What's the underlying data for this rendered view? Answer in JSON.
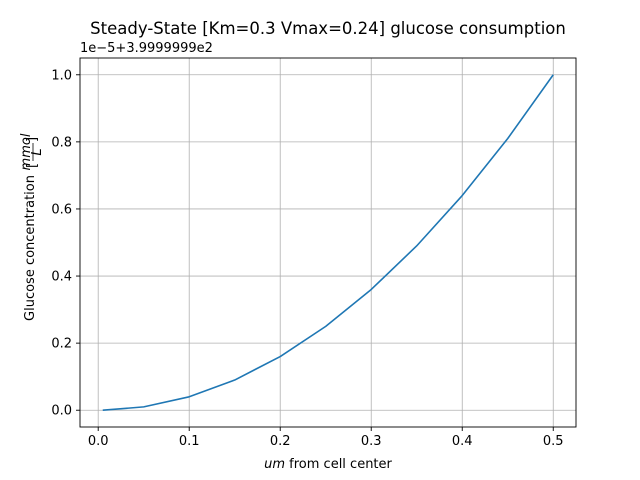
{
  "chart_data": {
    "type": "line",
    "title": "Steady-State [Km=0.3 Vmax=0.24] glucose consumption",
    "offset_text": "1e−5+3.9999999e2",
    "xlabel": {
      "italic_part": "um",
      "rest": " from cell center"
    },
    "ylabel": {
      "text": "Glucose concentration",
      "unit_numerator": "mmol",
      "unit_denominator": "L"
    },
    "xlim": [
      -0.02,
      0.525
    ],
    "ylim": [
      -0.05,
      1.05
    ],
    "x_ticks": [
      0.0,
      0.1,
      0.2,
      0.3,
      0.4,
      0.5
    ],
    "x_tick_labels": [
      "0.0",
      "0.1",
      "0.2",
      "0.3",
      "0.4",
      "0.5"
    ],
    "y_ticks": [
      0.0,
      0.2,
      0.4,
      0.6,
      0.8,
      1.0
    ],
    "y_tick_labels": [
      "0.0",
      "0.2",
      "0.4",
      "0.6",
      "0.8",
      "1.0"
    ],
    "grid": true,
    "legend": "none",
    "colors": {
      "line": "#1f77b4",
      "grid": "#b0b0b0",
      "axes": "#000000"
    },
    "series": [
      {
        "x": [
          0.005,
          0.05,
          0.1,
          0.15,
          0.2,
          0.25,
          0.3,
          0.35,
          0.4,
          0.45,
          0.5
        ],
        "y": [
          0.0,
          0.01,
          0.04,
          0.09,
          0.16,
          0.25,
          0.36,
          0.49,
          0.64,
          0.81,
          1.0
        ]
      }
    ]
  }
}
